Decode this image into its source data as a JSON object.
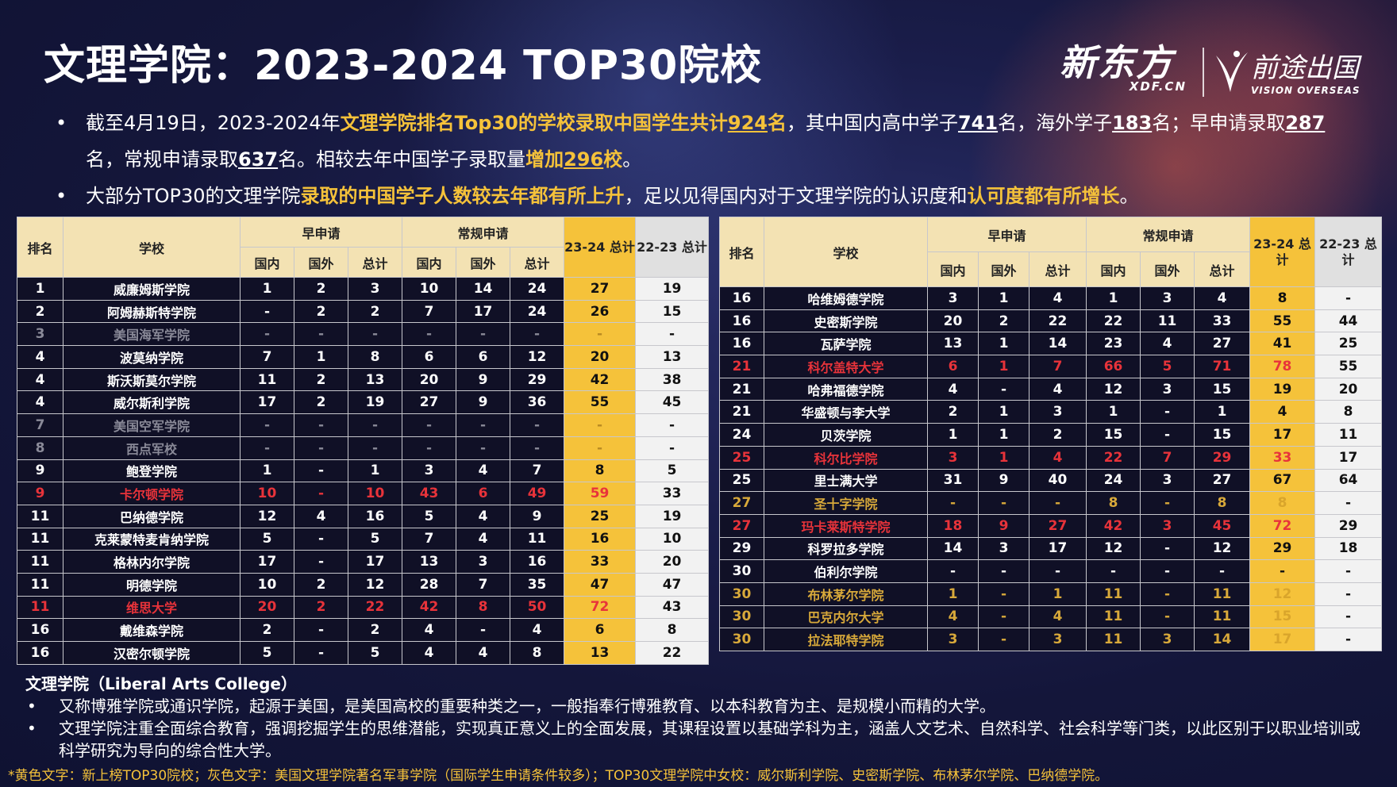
{
  "title": "文理学院：2023-2024 TOP30院校",
  "logos": {
    "xdf_main": "新东方",
    "xdf_sub": "XDF.CN",
    "vo_main": "前途出国",
    "vo_sub": "VISION OVERSEAS"
  },
  "bullets": {
    "b1_p1": "截至4月19日，2023-2024年",
    "b1_h1": "文理学院排名Top30的学校录取中国学生共计",
    "b1_n1": "924",
    "b1_h1e": "名",
    "b1_p2": "，其中国内高中学子",
    "b1_n2": "741",
    "b1_p3": "名，海外学子",
    "b1_n3": "183",
    "b1_p4": "名；早申请录取",
    "b1_n4": "287",
    "b1_p5": "名，常规申请录取",
    "b1_n5": "637",
    "b1_p6": "名。相较去年中国学子录取量",
    "b1_h2": "增加",
    "b1_n6": "296",
    "b1_h3": "校",
    "b1_p7": "。",
    "b2_p1": "大部分TOP30的文理学院",
    "b2_h1": "录取的中国学子人数较去年都有所上升",
    "b2_p2": "，足以见得国内对于文理学院的认识度和",
    "b2_h2": "认可度都有所增长",
    "b2_p3": "。"
  },
  "table_headers": {
    "rank": "排名",
    "school": "学校",
    "ed": "早申请",
    "rd": "常规申请",
    "dom": "国内",
    "intl": "国外",
    "total": "总计",
    "t2324": "23-24 总计",
    "t2223": "22-23 总计"
  },
  "table_left": [
    {
      "rank": "1",
      "school": "威廉姆斯学院",
      "v": [
        "1",
        "2",
        "3",
        "10",
        "14",
        "24",
        "27",
        "19"
      ],
      "style": ""
    },
    {
      "rank": "2",
      "school": "阿姆赫斯特学院",
      "v": [
        "-",
        "2",
        "2",
        "7",
        "17",
        "24",
        "26",
        "15"
      ],
      "style": ""
    },
    {
      "rank": "3",
      "school": "美国海军学院",
      "v": [
        "-",
        "-",
        "-",
        "-",
        "-",
        "-",
        "-",
        "-"
      ],
      "style": "gray"
    },
    {
      "rank": "4",
      "school": "波莫纳学院",
      "v": [
        "7",
        "1",
        "8",
        "6",
        "6",
        "12",
        "20",
        "13"
      ],
      "style": ""
    },
    {
      "rank": "4",
      "school": "斯沃斯莫尔学院",
      "v": [
        "11",
        "2",
        "13",
        "20",
        "9",
        "29",
        "42",
        "38"
      ],
      "style": ""
    },
    {
      "rank": "4",
      "school": "威尔斯利学院",
      "v": [
        "17",
        "2",
        "19",
        "27",
        "9",
        "36",
        "55",
        "45"
      ],
      "style": ""
    },
    {
      "rank": "7",
      "school": "美国空军学院",
      "v": [
        "-",
        "-",
        "-",
        "-",
        "-",
        "-",
        "-",
        "-"
      ],
      "style": "gray"
    },
    {
      "rank": "8",
      "school": "西点军校",
      "v": [
        "-",
        "-",
        "-",
        "-",
        "-",
        "-",
        "-",
        "-"
      ],
      "style": "gray"
    },
    {
      "rank": "9",
      "school": "鲍登学院",
      "v": [
        "1",
        "-",
        "1",
        "3",
        "4",
        "7",
        "8",
        "5"
      ],
      "style": ""
    },
    {
      "rank": "9",
      "school": "卡尔顿学院",
      "v": [
        "10",
        "-",
        "10",
        "43",
        "6",
        "49",
        "59",
        "33"
      ],
      "style": "red"
    },
    {
      "rank": "11",
      "school": "巴纳德学院",
      "v": [
        "12",
        "4",
        "16",
        "5",
        "4",
        "9",
        "25",
        "19"
      ],
      "style": ""
    },
    {
      "rank": "11",
      "school": "克莱蒙特麦肯纳学院",
      "v": [
        "5",
        "-",
        "5",
        "7",
        "4",
        "11",
        "16",
        "10"
      ],
      "style": ""
    },
    {
      "rank": "11",
      "school": "格林内尔学院",
      "v": [
        "17",
        "-",
        "17",
        "13",
        "3",
        "16",
        "33",
        "20"
      ],
      "style": ""
    },
    {
      "rank": "11",
      "school": "明德学院",
      "v": [
        "10",
        "2",
        "12",
        "28",
        "7",
        "35",
        "47",
        "47"
      ],
      "style": ""
    },
    {
      "rank": "11",
      "school": "维思大学",
      "v": [
        "20",
        "2",
        "22",
        "42",
        "8",
        "50",
        "72",
        "43"
      ],
      "style": "red"
    },
    {
      "rank": "16",
      "school": "戴维森学院",
      "v": [
        "2",
        "-",
        "2",
        "4",
        "-",
        "4",
        "6",
        "8"
      ],
      "style": ""
    },
    {
      "rank": "16",
      "school": "汉密尔顿学院",
      "v": [
        "5",
        "-",
        "5",
        "4",
        "4",
        "8",
        "13",
        "22"
      ],
      "style": ""
    }
  ],
  "table_right": [
    {
      "rank": "16",
      "school": "哈维姆德学院",
      "v": [
        "3",
        "1",
        "4",
        "1",
        "3",
        "4",
        "8",
        "-"
      ],
      "style": ""
    },
    {
      "rank": "16",
      "school": "史密斯学院",
      "v": [
        "20",
        "2",
        "22",
        "22",
        "11",
        "33",
        "55",
        "44"
      ],
      "style": ""
    },
    {
      "rank": "16",
      "school": "瓦萨学院",
      "v": [
        "13",
        "1",
        "14",
        "23",
        "4",
        "27",
        "41",
        "25"
      ],
      "style": ""
    },
    {
      "rank": "21",
      "school": "科尔盖特大学",
      "v": [
        "6",
        "1",
        "7",
        "66",
        "5",
        "71",
        "78",
        "55"
      ],
      "style": "red"
    },
    {
      "rank": "21",
      "school": "哈弗福德学院",
      "v": [
        "4",
        "-",
        "4",
        "12",
        "3",
        "15",
        "19",
        "20"
      ],
      "style": ""
    },
    {
      "rank": "21",
      "school": "华盛顿与李大学",
      "v": [
        "2",
        "1",
        "3",
        "1",
        "-",
        "1",
        "4",
        "8"
      ],
      "style": ""
    },
    {
      "rank": "24",
      "school": "贝茨学院",
      "v": [
        "1",
        "1",
        "2",
        "15",
        "-",
        "15",
        "17",
        "11"
      ],
      "style": ""
    },
    {
      "rank": "25",
      "school": "科尔比学院",
      "v": [
        "3",
        "1",
        "4",
        "22",
        "7",
        "29",
        "33",
        "17"
      ],
      "style": "red"
    },
    {
      "rank": "25",
      "school": "里士满大学",
      "v": [
        "31",
        "9",
        "40",
        "24",
        "3",
        "27",
        "67",
        "64"
      ],
      "style": ""
    },
    {
      "rank": "27",
      "school": "圣十字学院",
      "v": [
        "-",
        "-",
        "-",
        "8",
        "-",
        "8",
        "8",
        "-"
      ],
      "style": "yel"
    },
    {
      "rank": "27",
      "school": "玛卡莱斯特学院",
      "v": [
        "18",
        "9",
        "27",
        "42",
        "3",
        "45",
        "72",
        "29"
      ],
      "style": "red"
    },
    {
      "rank": "29",
      "school": "科罗拉多学院",
      "v": [
        "14",
        "3",
        "17",
        "12",
        "-",
        "12",
        "29",
        "18"
      ],
      "style": ""
    },
    {
      "rank": "30",
      "school": "伯利尔学院",
      "v": [
        "-",
        "-",
        "-",
        "-",
        "-",
        "-",
        "-",
        "-"
      ],
      "style": ""
    },
    {
      "rank": "30",
      "school": "布林茅尔学院",
      "v": [
        "1",
        "-",
        "1",
        "11",
        "-",
        "11",
        "12",
        "-"
      ],
      "style": "yel"
    },
    {
      "rank": "30",
      "school": "巴克内尔大学",
      "v": [
        "4",
        "-",
        "4",
        "11",
        "-",
        "11",
        "15",
        "-"
      ],
      "style": "yel"
    },
    {
      "rank": "30",
      "school": "拉法耶特学院",
      "v": [
        "3",
        "-",
        "3",
        "11",
        "3",
        "14",
        "17",
        "-"
      ],
      "style": "yel"
    }
  ],
  "definition": {
    "heading": "文理学院（Liberal Arts College）",
    "items": [
      "又称博雅学院或通识学院，起源于美国，是美国高校的重要种类之一，一般指奉行博雅教育、以本科教育为主、是规模小而精的大学。",
      "文理学院注重全面综合教育，强调挖掘学生的思维潜能，实现真正意义上的全面发展，其课程设置以基础学科为主，涵盖人文艺术、自然科学、社会科学等门类，以此区别于以职业培训或科学研究为导向的综合性大学。"
    ]
  },
  "footnote": "*黄色文字：新上榜TOP30院校；灰色文字：美国文理学院著名军事学院（国际学生申请条件较多）；TOP30文理学院中女校：威尔斯利学院、史密斯学院、布林茅尔学院、巴纳德学院。",
  "colors": {
    "highlight": "#f5c23a",
    "red": "#e8333a",
    "header_bg": "#f3e2b3",
    "cell_bg": "#101026"
  }
}
